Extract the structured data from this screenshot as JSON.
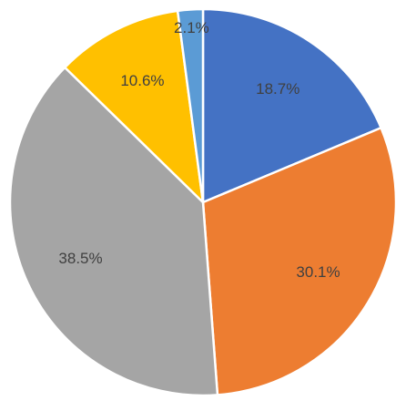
{
  "chart_data": {
    "type": "pie",
    "values": [
      18.7,
      30.1,
      38.5,
      10.6,
      2.1
    ],
    "value_labels": [
      "18.7%",
      "30.1%",
      "38.5%",
      "10.6%",
      "2.1%"
    ],
    "colors": [
      "#4472c4",
      "#ed7d31",
      "#a5a5a5",
      "#ffc000",
      "#5b9bd5"
    ]
  }
}
